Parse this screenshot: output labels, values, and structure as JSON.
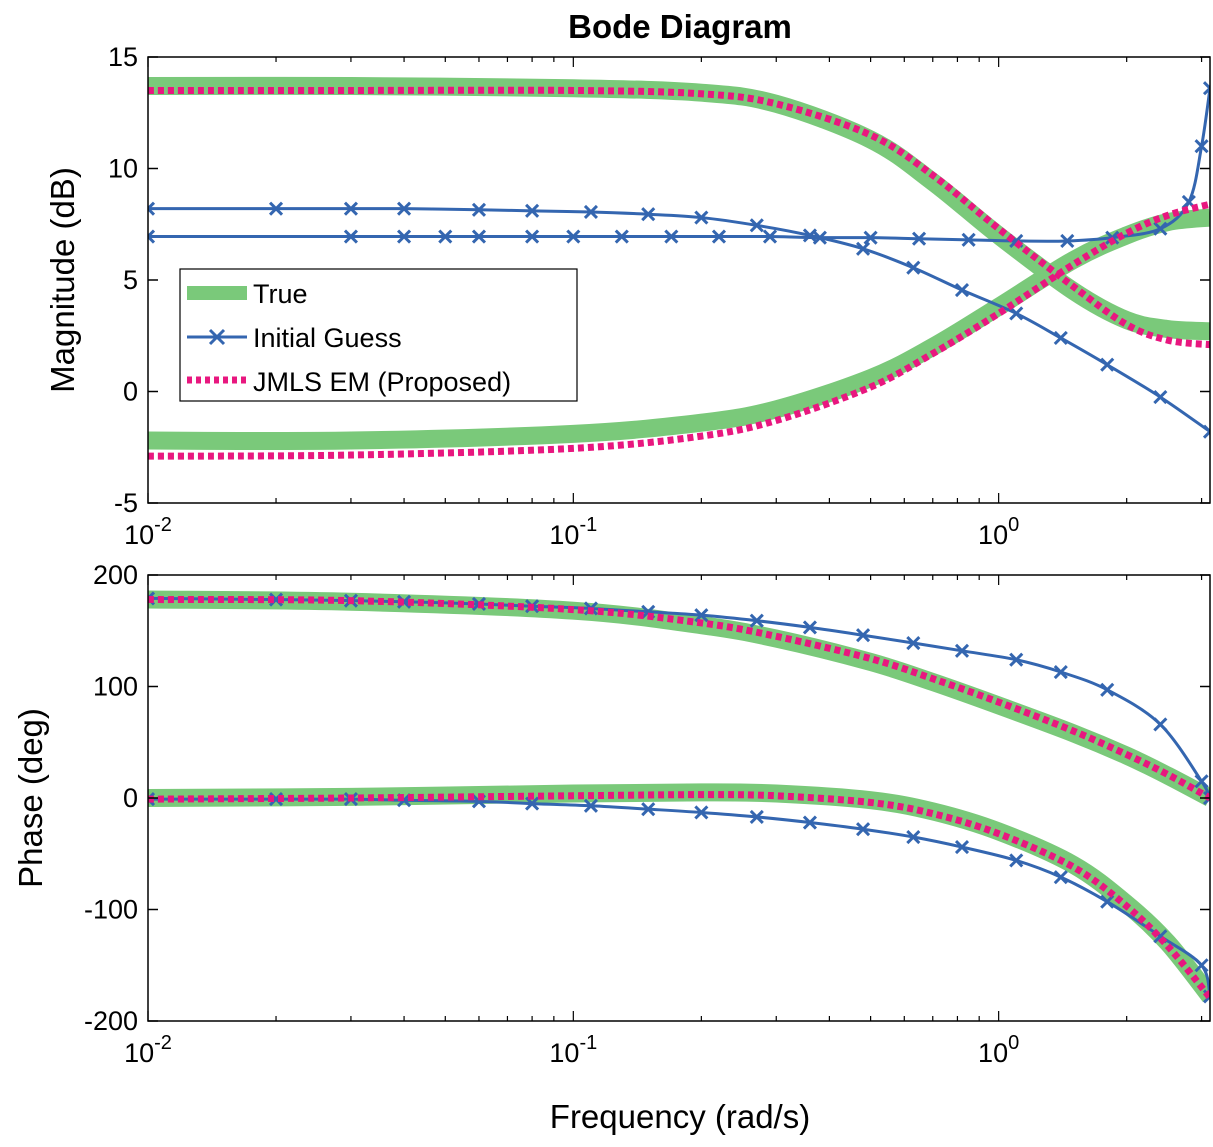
{
  "colors": {
    "true": "#7ac97a",
    "initial": "#3466b0",
    "em": "#e8177f",
    "axis": "#000000",
    "background": "#ffffff"
  },
  "chart_data": [
    {
      "type": "line",
      "panel": "magnitude",
      "title": "Bode Diagram",
      "xlabel": "",
      "ylabel": "Magnitude (dB)",
      "xscale": "log",
      "xlim": [
        0.01,
        3.14
      ],
      "ylim": [
        -5,
        15
      ],
      "yticks": [
        -5,
        0,
        5,
        10,
        15
      ],
      "xticks": [
        0.01,
        0.1,
        1
      ],
      "xtick_labels": [
        {
          "base": "10",
          "exp": "-2"
        },
        {
          "base": "10",
          "exp": "-1"
        },
        {
          "base": "10",
          "exp": "0"
        }
      ],
      "grid": false,
      "legend": {
        "placement": "left-center",
        "entries": [
          "True",
          "Initial Guess",
          "JMLS EM (Proposed)"
        ]
      },
      "series": [
        {
          "name": "True",
          "x": [
            0.01,
            0.03,
            0.1,
            0.2,
            0.3,
            0.5,
            0.7,
            1.0,
            1.5,
            2.0,
            2.5,
            3.14
          ],
          "y": [
            13.7,
            13.7,
            13.6,
            13.4,
            12.9,
            11.3,
            9.4,
            7.0,
            4.5,
            3.2,
            2.8,
            2.7
          ]
        },
        {
          "name": "True",
          "x": [
            0.01,
            0.03,
            0.1,
            0.2,
            0.3,
            0.5,
            0.7,
            1.0,
            1.5,
            2.0,
            2.5,
            3.14
          ],
          "y": [
            -2.2,
            -2.2,
            -1.9,
            -1.4,
            -0.8,
            0.6,
            2.0,
            3.8,
            5.9,
            7.0,
            7.6,
            7.8
          ]
        },
        {
          "name": "Initial Guess",
          "x": [
            0.01,
            0.02,
            0.03,
            0.04,
            0.06,
            0.08,
            0.11,
            0.15,
            0.2,
            0.27,
            0.36,
            0.48,
            0.63,
            0.82,
            1.1,
            1.4,
            1.8,
            2.4,
            3.14
          ],
          "y": [
            8.2,
            8.2,
            8.2,
            8.2,
            8.15,
            8.1,
            8.05,
            7.95,
            7.8,
            7.45,
            7.0,
            6.4,
            5.55,
            4.55,
            3.5,
            2.4,
            1.2,
            -0.25,
            -1.8
          ]
        },
        {
          "name": "Initial Guess",
          "x": [
            0.01,
            0.03,
            0.04,
            0.05,
            0.06,
            0.08,
            0.1,
            0.13,
            0.17,
            0.22,
            0.29,
            0.38,
            0.5,
            0.65,
            0.85,
            1.1,
            1.45,
            1.85,
            2.4,
            2.8,
            3.0,
            3.14
          ],
          "y": [
            6.95,
            6.95,
            6.95,
            6.95,
            6.95,
            6.95,
            6.95,
            6.95,
            6.95,
            6.95,
            6.95,
            6.9,
            6.9,
            6.85,
            6.8,
            6.75,
            6.75,
            6.9,
            7.3,
            8.5,
            11.0,
            13.6
          ]
        },
        {
          "name": "JMLS EM (Proposed)",
          "x": [
            0.01,
            0.03,
            0.1,
            0.2,
            0.3,
            0.5,
            0.7,
            1.0,
            1.5,
            2.0,
            2.5,
            3.14
          ],
          "y": [
            13.5,
            13.5,
            13.5,
            13.35,
            12.9,
            11.5,
            9.7,
            7.3,
            4.7,
            3.0,
            2.3,
            2.1
          ]
        },
        {
          "name": "JMLS EM (Proposed)",
          "x": [
            0.01,
            0.03,
            0.1,
            0.2,
            0.3,
            0.5,
            0.7,
            1.0,
            1.5,
            2.0,
            2.5,
            3.14
          ],
          "y": [
            -2.9,
            -2.85,
            -2.55,
            -2.0,
            -1.3,
            0.2,
            1.7,
            3.5,
            5.7,
            7.1,
            7.9,
            8.4
          ]
        }
      ]
    },
    {
      "type": "line",
      "panel": "phase",
      "title": "",
      "xlabel": "Frequency (rad/s)",
      "ylabel": "Phase (deg)",
      "xscale": "log",
      "xlim": [
        0.01,
        3.14
      ],
      "ylim": [
        -200,
        200
      ],
      "yticks": [
        -200,
        -100,
        0,
        100,
        200
      ],
      "xticks": [
        0.01,
        0.1,
        1
      ],
      "xtick_labels": [
        {
          "base": "10",
          "exp": "-2"
        },
        {
          "base": "10",
          "exp": "-1"
        },
        {
          "base": "10",
          "exp": "0"
        }
      ],
      "grid": false,
      "series": [
        {
          "name": "True",
          "x": [
            0.01,
            0.03,
            0.1,
            0.2,
            0.3,
            0.5,
            0.7,
            1.0,
            1.5,
            2.0,
            2.5,
            3.14
          ],
          "y": [
            178,
            176,
            168,
            155,
            143,
            122,
            104,
            83,
            58,
            38,
            20,
            0
          ]
        },
        {
          "name": "True",
          "x": [
            0.01,
            0.03,
            0.1,
            0.2,
            0.3,
            0.5,
            0.7,
            1.0,
            1.5,
            2.0,
            2.5,
            3.14
          ],
          "y": [
            0,
            1,
            4,
            5,
            4,
            -2,
            -12,
            -30,
            -60,
            -95,
            -130,
            -178
          ]
        },
        {
          "name": "Initial Guess",
          "x": [
            0.01,
            0.02,
            0.03,
            0.04,
            0.06,
            0.08,
            0.11,
            0.15,
            0.2,
            0.27,
            0.36,
            0.48,
            0.63,
            0.82,
            1.1,
            1.4,
            1.8,
            2.4,
            3.0,
            3.14
          ],
          "y": [
            179,
            178,
            177,
            176,
            174,
            172,
            170,
            167,
            164,
            159,
            153,
            146,
            139,
            132,
            124,
            113,
            97,
            66,
            15,
            0
          ]
        },
        {
          "name": "Initial Guess",
          "x": [
            0.01,
            0.02,
            0.03,
            0.04,
            0.06,
            0.08,
            0.11,
            0.15,
            0.2,
            0.27,
            0.36,
            0.48,
            0.63,
            0.82,
            1.1,
            1.4,
            1.8,
            2.4,
            3.0,
            3.14
          ],
          "y": [
            -1,
            -1,
            -1,
            -2,
            -3,
            -5,
            -7,
            -10,
            -13,
            -17,
            -22,
            -28,
            -35,
            -44,
            -56,
            -71,
            -93,
            -124,
            -150,
            -178
          ]
        },
        {
          "name": "JMLS EM (Proposed)",
          "x": [
            0.01,
            0.03,
            0.1,
            0.2,
            0.3,
            0.5,
            0.7,
            1.0,
            1.5,
            2.0,
            2.5,
            3.14
          ],
          "y": [
            178,
            177,
            169,
            157,
            145,
            125,
            107,
            86,
            60,
            39,
            21,
            0
          ]
        },
        {
          "name": "JMLS EM (Proposed)",
          "x": [
            0.01,
            0.03,
            0.1,
            0.2,
            0.3,
            0.5,
            0.7,
            1.0,
            1.5,
            2.0,
            2.5,
            3.14
          ],
          "y": [
            -1,
            0,
            2,
            3,
            2,
            -4,
            -14,
            -32,
            -62,
            -97,
            -133,
            -179
          ]
        }
      ]
    }
  ]
}
